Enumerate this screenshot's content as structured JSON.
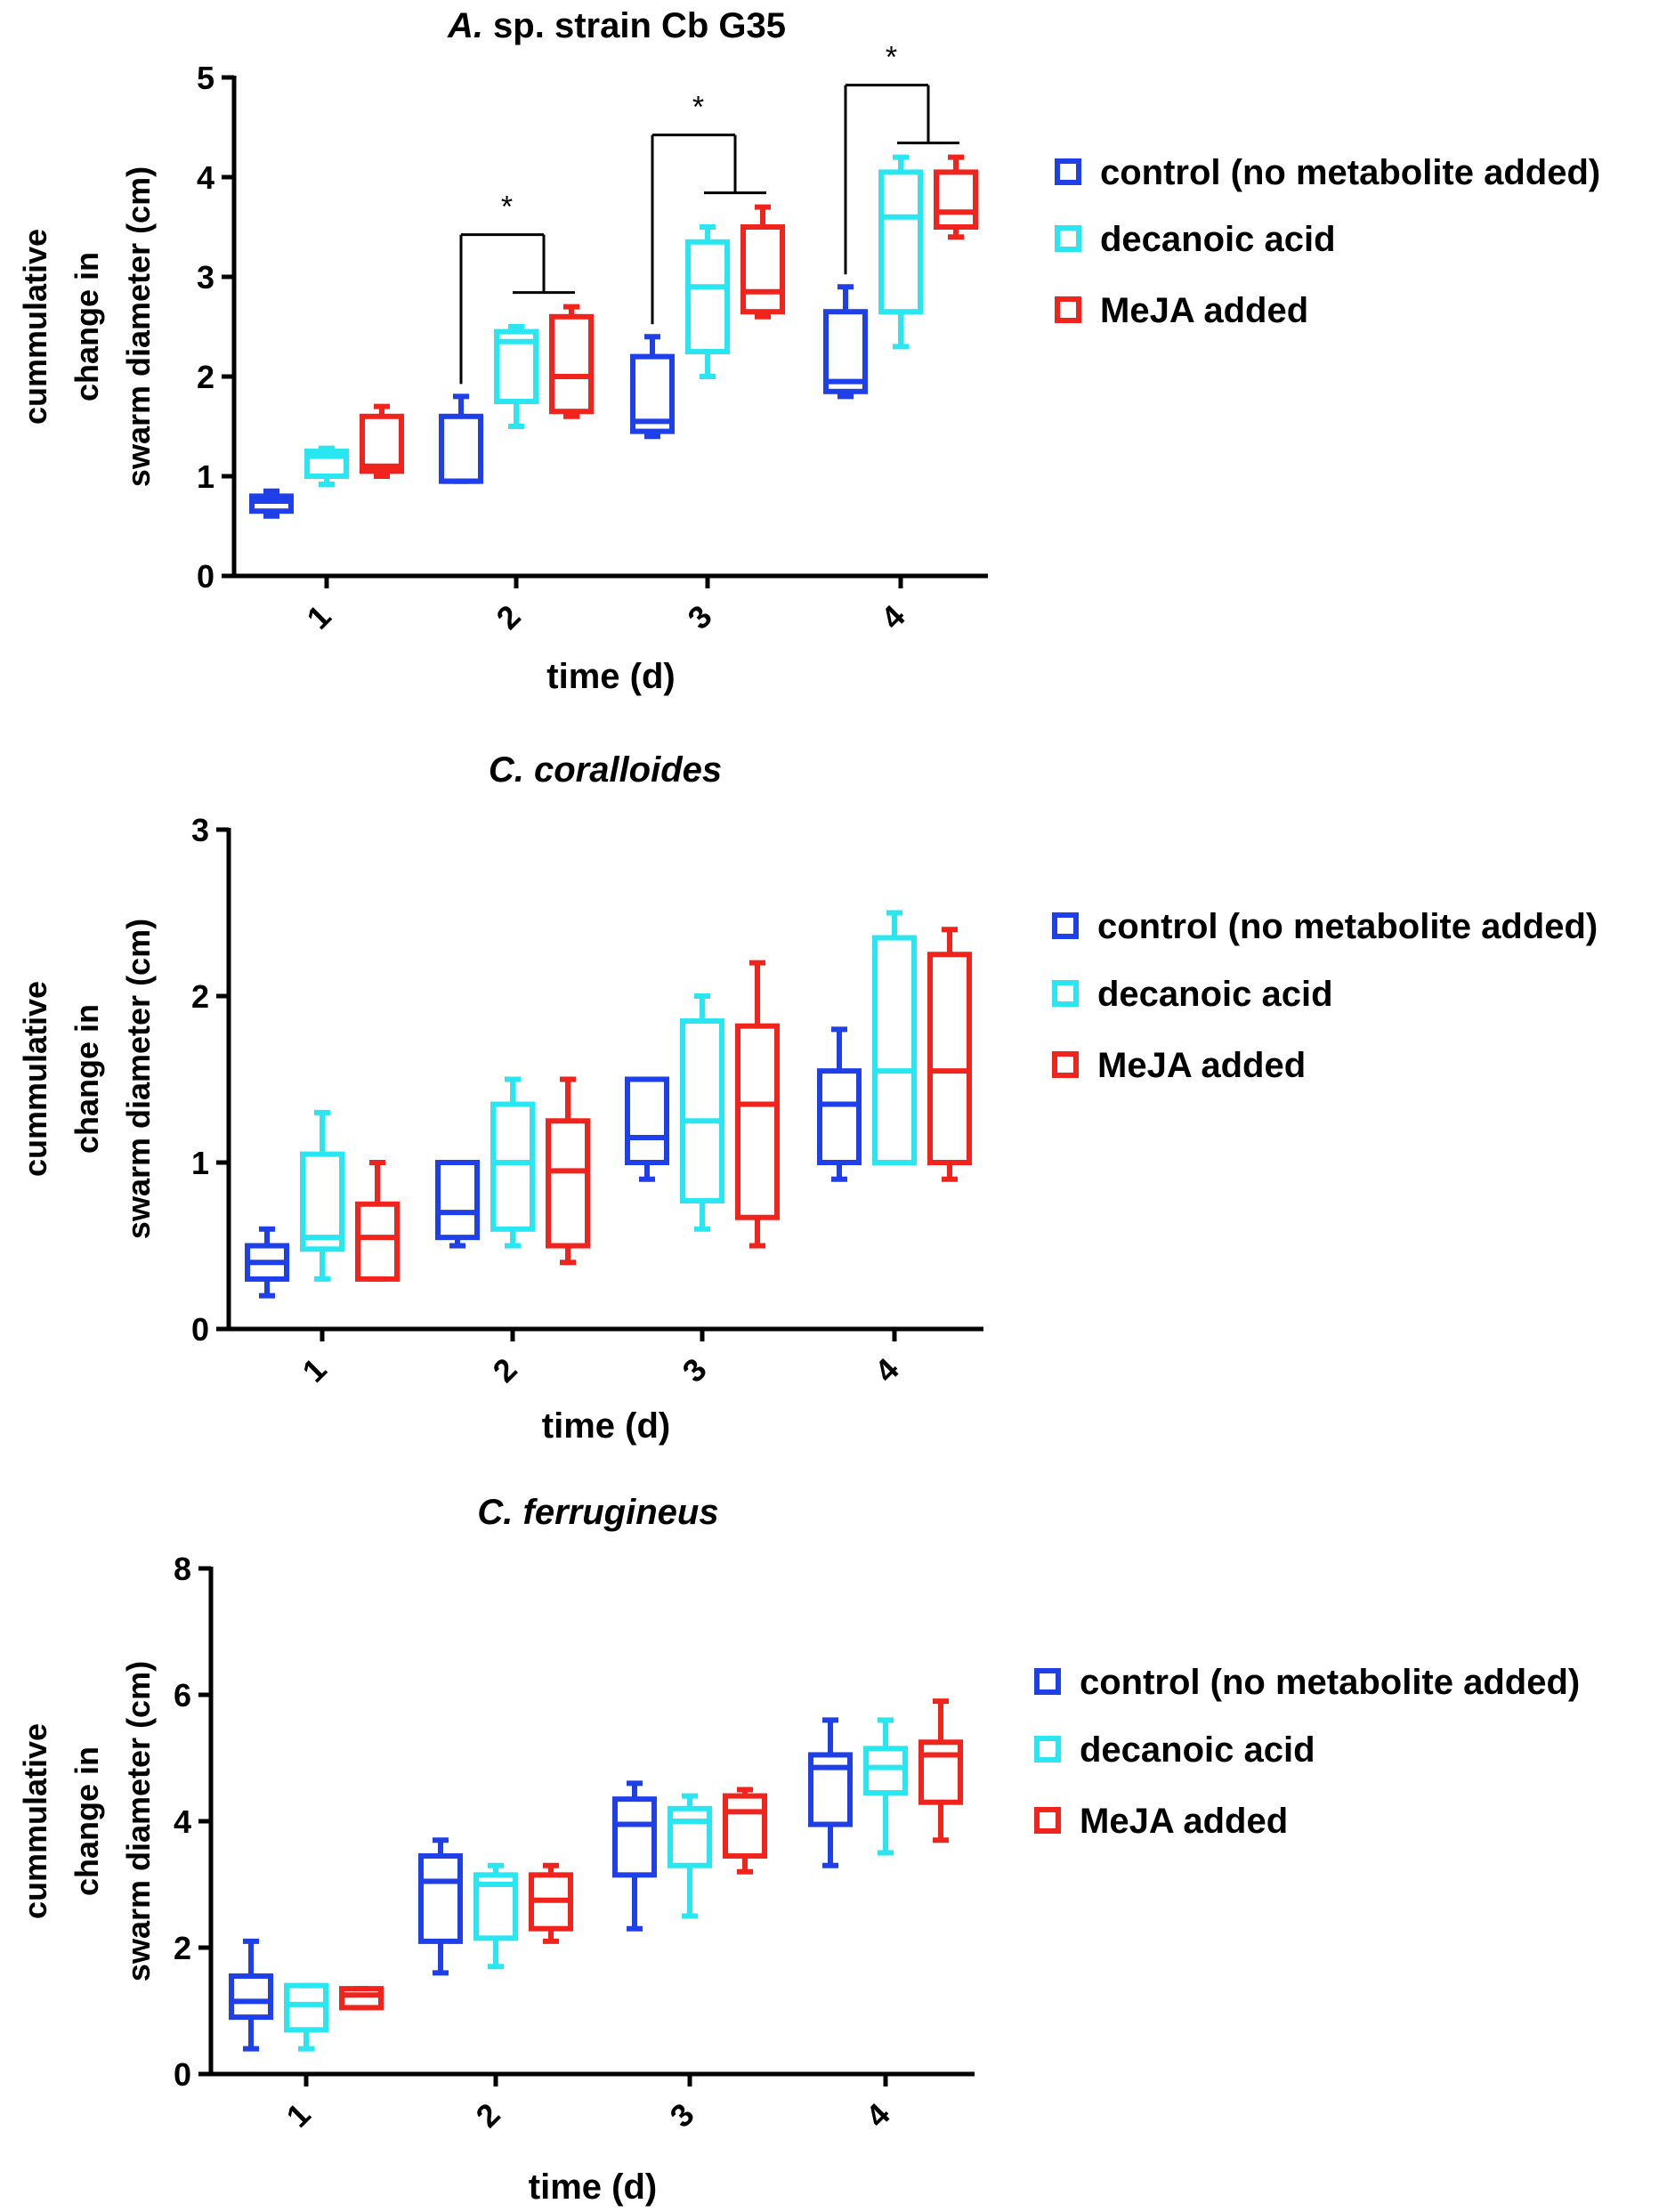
{
  "chart_data": [
    {
      "type": "box",
      "title_italic": "A.",
      "title_rest": " sp. strain Cb G35",
      "xlabel": "time (d)",
      "ylabel": [
        "cummulative",
        "change in",
        "swarm diameter (cm)"
      ],
      "ylim": [
        0,
        5
      ],
      "yticks": [
        0,
        1,
        2,
        3,
        4,
        5
      ],
      "categories": [
        "1",
        "2",
        "3",
        "4"
      ],
      "legend": [
        {
          "label": "control (no metabolite added)",
          "color": "#1f3fe8"
        },
        {
          "label": "decanoic acid",
          "color": "#2ae6f0"
        },
        {
          "label": "MeJA added",
          "color": "#f0241c"
        }
      ],
      "significance": [
        "*",
        "*",
        "*"
      ],
      "series": [
        {
          "name": "control (no metabolite added)",
          "color": "#1f3fe8",
          "boxes": [
            {
              "min": 0.6,
              "q1": 0.65,
              "median": 0.75,
              "q3": 0.8,
              "max": 0.85
            },
            {
              "min": 0.95,
              "q1": 0.95,
              "median": 0.95,
              "q3": 1.6,
              "max": 1.8
            },
            {
              "min": 1.4,
              "q1": 1.45,
              "median": 1.55,
              "q3": 2.2,
              "max": 2.4
            },
            {
              "min": 1.8,
              "q1": 1.85,
              "median": 1.95,
              "q3": 2.65,
              "max": 2.9
            }
          ]
        },
        {
          "name": "decanoic acid",
          "color": "#2ae6f0",
          "boxes": [
            {
              "min": 0.92,
              "q1": 1.0,
              "median": 1.2,
              "q3": 1.25,
              "max": 1.28
            },
            {
              "min": 1.5,
              "q1": 1.75,
              "median": 2.35,
              "q3": 2.45,
              "max": 2.5
            },
            {
              "min": 2.0,
              "q1": 2.25,
              "median": 2.9,
              "q3": 3.35,
              "max": 3.5
            },
            {
              "min": 2.3,
              "q1": 2.65,
              "median": 3.6,
              "q3": 4.05,
              "max": 4.2
            }
          ]
        },
        {
          "name": "MeJA added",
          "color": "#f0241c",
          "boxes": [
            {
              "min": 1.0,
              "q1": 1.05,
              "median": 1.1,
              "q3": 1.6,
              "max": 1.7
            },
            {
              "min": 1.6,
              "q1": 1.65,
              "median": 2.0,
              "q3": 2.6,
              "max": 2.7
            },
            {
              "min": 2.6,
              "q1": 2.65,
              "median": 2.85,
              "q3": 3.5,
              "max": 3.7
            },
            {
              "min": 3.4,
              "q1": 3.5,
              "median": 3.65,
              "q3": 4.05,
              "max": 4.2
            }
          ]
        }
      ]
    },
    {
      "type": "box",
      "title_italic": "C. coralloides",
      "title_rest": "",
      "xlabel": "time (d)",
      "ylabel": [
        "cummulative",
        "change in",
        "swarm diameter (cm)"
      ],
      "ylim": [
        0,
        3
      ],
      "yticks": [
        0,
        1,
        2,
        3
      ],
      "categories": [
        "1",
        "2",
        "3",
        "4"
      ],
      "legend": [
        {
          "label": "control (no metabolite added)",
          "color": "#1f3fe8"
        },
        {
          "label": "decanoic acid",
          "color": "#2ae6f0"
        },
        {
          "label": "MeJA added",
          "color": "#f0241c"
        }
      ],
      "series": [
        {
          "name": "control (no metabolite added)",
          "color": "#1f3fe8",
          "boxes": [
            {
              "min": 0.2,
              "q1": 0.3,
              "median": 0.4,
              "q3": 0.5,
              "max": 0.6
            },
            {
              "min": 0.5,
              "q1": 0.55,
              "median": 0.7,
              "q3": 1.0,
              "max": 1.0
            },
            {
              "min": 0.9,
              "q1": 1.0,
              "median": 1.15,
              "q3": 1.5,
              "max": 1.5
            },
            {
              "min": 0.9,
              "q1": 1.0,
              "median": 1.35,
              "q3": 1.55,
              "max": 1.8
            }
          ]
        },
        {
          "name": "decanoic acid",
          "color": "#2ae6f0",
          "boxes": [
            {
              "min": 0.3,
              "q1": 0.48,
              "median": 0.55,
              "q3": 1.05,
              "max": 1.3
            },
            {
              "min": 0.5,
              "q1": 0.6,
              "median": 1.0,
              "q3": 1.35,
              "max": 1.5
            },
            {
              "min": 0.6,
              "q1": 0.77,
              "median": 1.25,
              "q3": 1.85,
              "max": 2.0
            },
            {
              "min": 1.0,
              "q1": 1.0,
              "median": 1.55,
              "q3": 2.35,
              "max": 2.5
            }
          ]
        },
        {
          "name": "MeJA added",
          "color": "#f0241c",
          "boxes": [
            {
              "min": 0.3,
              "q1": 0.3,
              "median": 0.55,
              "q3": 0.75,
              "max": 1.0
            },
            {
              "min": 0.4,
              "q1": 0.5,
              "median": 0.95,
              "q3": 1.25,
              "max": 1.5
            },
            {
              "min": 0.5,
              "q1": 0.67,
              "median": 1.35,
              "q3": 1.82,
              "max": 2.2
            },
            {
              "min": 0.9,
              "q1": 1.0,
              "median": 1.55,
              "q3": 2.25,
              "max": 2.4
            }
          ]
        }
      ]
    },
    {
      "type": "box",
      "title_italic": "C. ferrugineus",
      "title_rest": "",
      "xlabel": "time (d)",
      "ylabel": [
        "cummulative",
        "change in",
        "swarm diameter (cm)"
      ],
      "ylim": [
        0,
        8
      ],
      "yticks": [
        0,
        2,
        4,
        6,
        8
      ],
      "categories": [
        "1",
        "2",
        "3",
        "4"
      ],
      "legend": [
        {
          "label": "control (no metabolite added)",
          "color": "#1f3fe8"
        },
        {
          "label": "decanoic acid",
          "color": "#2ae6f0"
        },
        {
          "label": "MeJA added",
          "color": "#f0241c"
        }
      ],
      "series": [
        {
          "name": "control (no metabolite added)",
          "color": "#1f3fe8",
          "boxes": [
            {
              "min": 0.4,
              "q1": 0.9,
              "median": 1.15,
              "q3": 1.55,
              "max": 2.1
            },
            {
              "min": 1.6,
              "q1": 2.1,
              "median": 3.05,
              "q3": 3.45,
              "max": 3.7
            },
            {
              "min": 2.3,
              "q1": 3.15,
              "median": 3.95,
              "q3": 4.35,
              "max": 4.6
            },
            {
              "min": 3.3,
              "q1": 3.95,
              "median": 4.85,
              "q3": 5.05,
              "max": 5.6
            }
          ]
        },
        {
          "name": "decanoic acid",
          "color": "#2ae6f0",
          "boxes": [
            {
              "min": 0.4,
              "q1": 0.7,
              "median": 1.1,
              "q3": 1.4,
              "max": 1.4
            },
            {
              "min": 1.7,
              "q1": 2.15,
              "median": 3.0,
              "q3": 3.15,
              "max": 3.3
            },
            {
              "min": 2.5,
              "q1": 3.3,
              "median": 4.0,
              "q3": 4.2,
              "max": 4.4
            },
            {
              "min": 3.5,
              "q1": 4.45,
              "median": 4.85,
              "q3": 5.15,
              "max": 5.6
            }
          ]
        },
        {
          "name": "MeJA added",
          "color": "#f0241c",
          "boxes": [
            {
              "min": 1.05,
              "q1": 1.05,
              "median": 1.25,
              "q3": 1.35,
              "max": 1.35
            },
            {
              "min": 2.1,
              "q1": 2.3,
              "median": 2.75,
              "q3": 3.15,
              "max": 3.3
            },
            {
              "min": 3.2,
              "q1": 3.45,
              "median": 4.15,
              "q3": 4.4,
              "max": 4.5
            },
            {
              "min": 3.7,
              "q1": 4.3,
              "median": 5.05,
              "q3": 5.25,
              "max": 5.9
            }
          ]
        }
      ]
    }
  ]
}
